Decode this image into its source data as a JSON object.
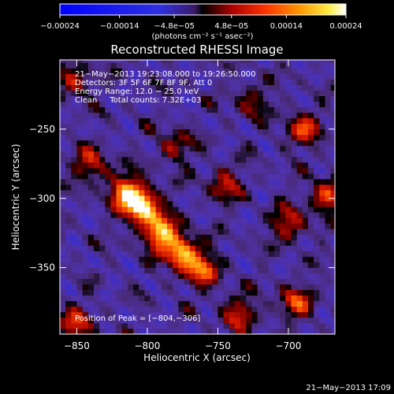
{
  "chart_data": {
    "type": "heatmap",
    "title": "Reconstructed RHESSI Image",
    "xlabel": "Heliocentric X (arcsec)",
    "ylabel": "Heliocentric Y (arcsec)",
    "xlim": [
      -862,
      -667
    ],
    "ylim": [
      -398,
      -200
    ],
    "x_ticks": [
      -850,
      -800,
      -750,
      -700
    ],
    "x_tick_labels": [
      "−850",
      "−800",
      "−750",
      "−700"
    ],
    "y_ticks": [
      -250,
      -300,
      -350
    ],
    "y_tick_labels": [
      "−250",
      "−300",
      "−350"
    ],
    "colorbar": {
      "range": [
        -0.00024,
        0.00024
      ],
      "ticks": [
        -0.00024,
        -0.00014,
        -4.8e-05,
        4.8e-05,
        0.00014,
        0.00024
      ],
      "tick_labels": [
        "−0.00024",
        "−0.00014",
        "−4.8e−05",
        "4.8e−05",
        "0.00014",
        "0.00024"
      ],
      "units_label": "(photons cm⁻² s⁻¹ asec⁻²)"
    },
    "annotations": [
      "21−May−2013 19:23:08.000 to 19:26:50.000",
      "Detectors: 3F 5F 6F 7F 8F 9F, Att 0",
      "Energy Range: 12.0 − 25.0 keV",
      "Clean     Total counts: 7.32E+03"
    ],
    "peak_label": "Position of Peak = [−804,−306]",
    "peak": [
      -804,
      -306
    ],
    "sources": [
      {
        "x": -804,
        "y": -306,
        "amp": 1.0
      },
      {
        "x": -790,
        "y": -325,
        "amp": 0.85
      },
      {
        "x": -775,
        "y": -340,
        "amp": 0.8
      },
      {
        "x": -815,
        "y": -295,
        "amp": 0.7
      },
      {
        "x": -760,
        "y": -352,
        "amp": 0.55
      },
      {
        "x": -840,
        "y": -275,
        "amp": 0.45
      },
      {
        "x": -690,
        "y": -250,
        "amp": 0.5
      },
      {
        "x": -672,
        "y": -298,
        "amp": 0.55
      },
      {
        "x": -700,
        "y": -318,
        "amp": 0.45
      },
      {
        "x": -695,
        "y": -375,
        "amp": 0.5
      },
      {
        "x": -745,
        "y": -290,
        "amp": 0.4
      },
      {
        "x": -735,
        "y": -383,
        "amp": 0.45
      },
      {
        "x": -850,
        "y": -390,
        "amp": 0.45
      },
      {
        "x": -852,
        "y": -215,
        "amp": 0.4
      },
      {
        "x": -780,
        "y": -262,
        "amp": 0.35
      },
      {
        "x": -726,
        "y": -230,
        "amp": 0.3
      }
    ],
    "grid": false
  },
  "footer": {
    "timestamp": "21−May−2013 17:09"
  }
}
